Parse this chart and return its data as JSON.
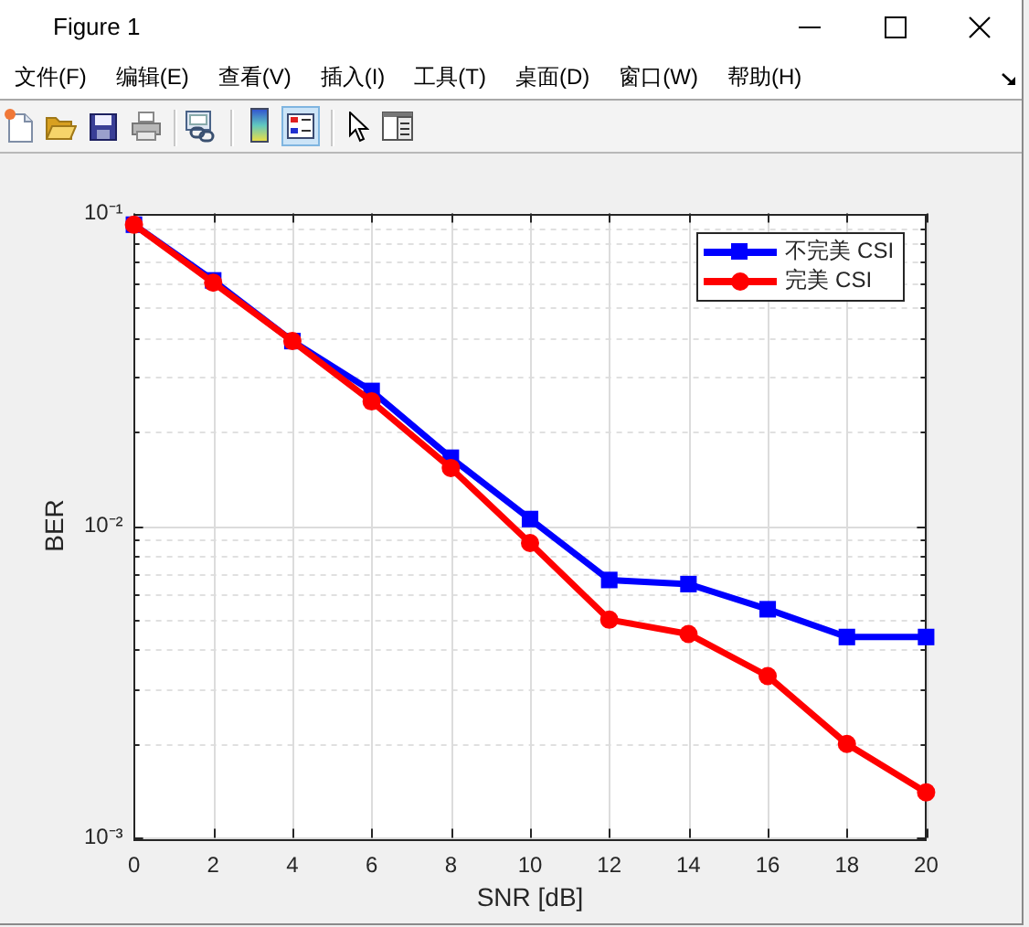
{
  "chart_data": {
    "type": "line",
    "annotations": [
      "Figure 1",
      "文件(F)",
      "编辑(E)",
      "查看(V)",
      "插入(I)",
      "工具(T)",
      "桌面(D)",
      "窗口(W)",
      "帮助(H)"
    ],
    "xlabel": "SNR [dB]",
    "ylabel": "BER",
    "x": [
      0,
      2,
      4,
      6,
      8,
      10,
      12,
      14,
      16,
      18,
      20
    ],
    "series": [
      {
        "name": "不完美 CSI",
        "color": "#0000ff",
        "marker": "square",
        "values": [
          0.092,
          0.061,
          0.039,
          0.027,
          0.0165,
          0.0105,
          0.0067,
          0.0065,
          0.0054,
          0.0044,
          0.0044
        ]
      },
      {
        "name": "完美 CSI",
        "color": "#ff0000",
        "marker": "circle",
        "values": [
          0.092,
          0.06,
          0.039,
          0.025,
          0.0153,
          0.0088,
          0.005,
          0.0045,
          0.0033,
          0.002,
          0.0014
        ]
      }
    ],
    "xlim": [
      0,
      20
    ],
    "xticks": [
      0,
      2,
      4,
      6,
      8,
      10,
      12,
      14,
      16,
      18,
      20
    ],
    "ylim": [
      0.001,
      0.1
    ],
    "yticks": [
      {
        "value": 0.001,
        "label": "10⁻³"
      },
      {
        "value": 0.002,
        "label": null
      },
      {
        "value": 0.003,
        "label": null
      },
      {
        "value": 0.004,
        "label": null
      },
      {
        "value": 0.005,
        "label": null
      },
      {
        "value": 0.006,
        "label": null
      },
      {
        "value": 0.007,
        "label": null
      },
      {
        "value": 0.008,
        "label": null
      },
      {
        "value": 0.009,
        "label": null
      },
      {
        "value": 0.01,
        "label": "10⁻²"
      },
      {
        "value": 0.02,
        "label": null
      },
      {
        "value": 0.03,
        "label": null
      },
      {
        "value": 0.04,
        "label": null
      },
      {
        "value": 0.05,
        "label": null
      },
      {
        "value": 0.06,
        "label": null
      },
      {
        "value": 0.07,
        "label": null
      },
      {
        "value": 0.08,
        "label": null
      },
      {
        "value": 0.09,
        "label": null
      },
      {
        "value": 0.1,
        "label": "10⁻¹"
      }
    ],
    "log": "y",
    "grid": true,
    "legend": "top right",
    "line_style": "solid"
  }
}
